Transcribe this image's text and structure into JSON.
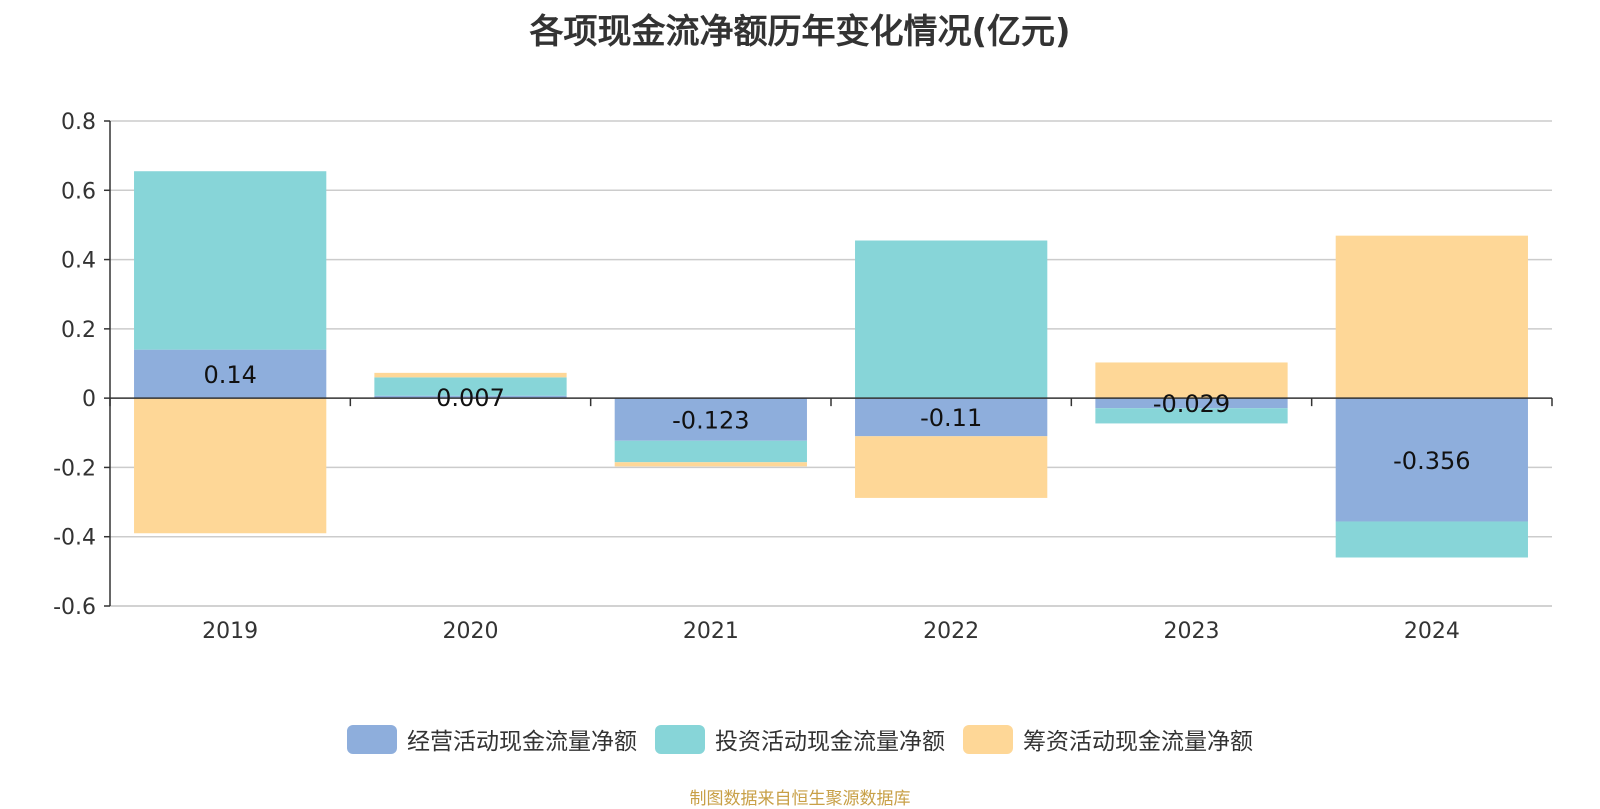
{
  "title": "各项现金流净额历年变化情况(亿元)",
  "source": "制图数据来自恒生聚源数据库",
  "chart_data": {
    "type": "bar",
    "stacked": true,
    "title": "各项现金流净额历年变化情况(亿元)",
    "categories": [
      "2019",
      "2020",
      "2021",
      "2022",
      "2023",
      "2024"
    ],
    "ylim": [
      -0.6,
      0.8
    ],
    "yticks": [
      0.8,
      0.6,
      0.4,
      0.2,
      0,
      -0.2,
      -0.4,
      -0.6
    ],
    "ytick_labels": [
      "0.8",
      "0.6",
      "0.4",
      "0.2",
      "0",
      "-0.2",
      "-0.4",
      "-0.6"
    ],
    "grid": true,
    "legend_position": "bottom",
    "series": [
      {
        "name": "经营活动现金流量净额",
        "color": "#8eaedc",
        "values": [
          0.14,
          0.007,
          -0.123,
          -0.11,
          -0.029,
          -0.356
        ],
        "labels": [
          "0.14",
          "0.007",
          "-0.123",
          "-0.11",
          "-0.029",
          "-0.356"
        ]
      },
      {
        "name": "投资活动现金流量净额",
        "color": "#87d5d8",
        "values": [
          0.515,
          0.053,
          -0.062,
          0.455,
          -0.044,
          -0.104
        ]
      },
      {
        "name": "筹资活动现金流量净额",
        "color": "#fed797",
        "values": [
          -0.39,
          0.013,
          -0.012,
          -0.178,
          0.103,
          0.469
        ]
      }
    ]
  }
}
